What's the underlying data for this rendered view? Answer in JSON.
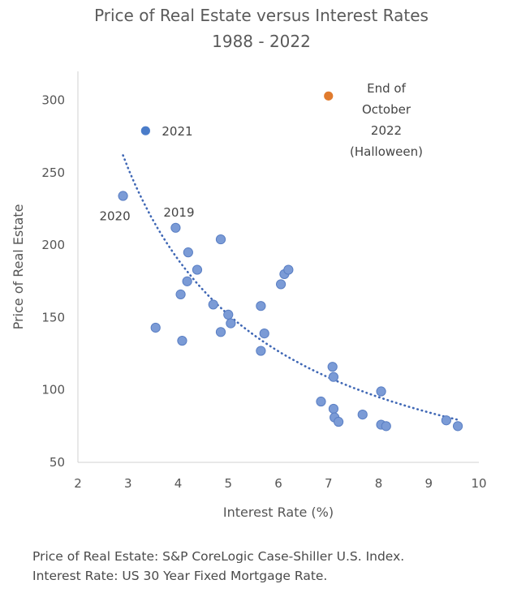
{
  "chart_data": {
    "type": "scatter",
    "title": "Price of Real Estate versus Interest Rates",
    "subtitle": "1988 - 2022",
    "xlabel": "Interest Rate (%)",
    "ylabel": "Price of Real Estate",
    "xlim": [
      2,
      10
    ],
    "ylim": [
      50,
      320
    ],
    "xticks": [
      2,
      3,
      4,
      5,
      6,
      7,
      8,
      9,
      10
    ],
    "yticks": [
      50,
      100,
      150,
      200,
      250,
      300
    ],
    "grid": false,
    "colors": {
      "points": "#7b9bd6",
      "points_edge": "#5a7fc4",
      "highlight_2021": "#4a7cc9",
      "highlight_2022": "#e07b2e",
      "trendline": "#3f67b5",
      "axis": "#d0d0d0"
    },
    "points": [
      {
        "x": 2.9,
        "y": 234
      },
      {
        "x": 3.55,
        "y": 143
      },
      {
        "x": 3.95,
        "y": 212
      },
      {
        "x": 4.05,
        "y": 166
      },
      {
        "x": 4.08,
        "y": 134
      },
      {
        "x": 4.18,
        "y": 175
      },
      {
        "x": 4.2,
        "y": 195
      },
      {
        "x": 4.38,
        "y": 183
      },
      {
        "x": 4.7,
        "y": 159
      },
      {
        "x": 4.85,
        "y": 140
      },
      {
        "x": 4.85,
        "y": 204
      },
      {
        "x": 5.0,
        "y": 152
      },
      {
        "x": 5.05,
        "y": 146
      },
      {
        "x": 5.65,
        "y": 127
      },
      {
        "x": 5.65,
        "y": 158
      },
      {
        "x": 5.72,
        "y": 139
      },
      {
        "x": 6.05,
        "y": 173
      },
      {
        "x": 6.12,
        "y": 180
      },
      {
        "x": 6.2,
        "y": 183
      },
      {
        "x": 6.85,
        "y": 92
      },
      {
        "x": 7.08,
        "y": 116
      },
      {
        "x": 7.1,
        "y": 109
      },
      {
        "x": 7.1,
        "y": 87
      },
      {
        "x": 7.12,
        "y": 81
      },
      {
        "x": 7.2,
        "y": 78
      },
      {
        "x": 7.68,
        "y": 83
      },
      {
        "x": 8.05,
        "y": 99
      },
      {
        "x": 8.05,
        "y": 76
      },
      {
        "x": 8.15,
        "y": 75
      },
      {
        "x": 9.35,
        "y": 79
      },
      {
        "x": 9.58,
        "y": 75
      }
    ],
    "highlight_points": [
      {
        "x": 3.35,
        "y": 279,
        "label": "2021"
      },
      {
        "x": 7.0,
        "y": 303,
        "label_lines": [
          "End of",
          "October",
          "2022",
          "(Halloween)"
        ]
      }
    ],
    "annotations": [
      {
        "text": "2020",
        "x": 2.9,
        "y": 234
      },
      {
        "text": "2019",
        "x": 3.95,
        "y": 212
      }
    ],
    "trendline": {
      "type": "power",
      "x_range": [
        2.9,
        9.58
      ],
      "a": 759,
      "b": -0.999,
      "style": "dotted"
    }
  },
  "footer": {
    "line1": "Price of Real Estate: S&P CoreLogic Case-Shiller U.S. Index.",
    "line2": "Interest Rate: US 30 Year Fixed Mortgage Rate."
  }
}
